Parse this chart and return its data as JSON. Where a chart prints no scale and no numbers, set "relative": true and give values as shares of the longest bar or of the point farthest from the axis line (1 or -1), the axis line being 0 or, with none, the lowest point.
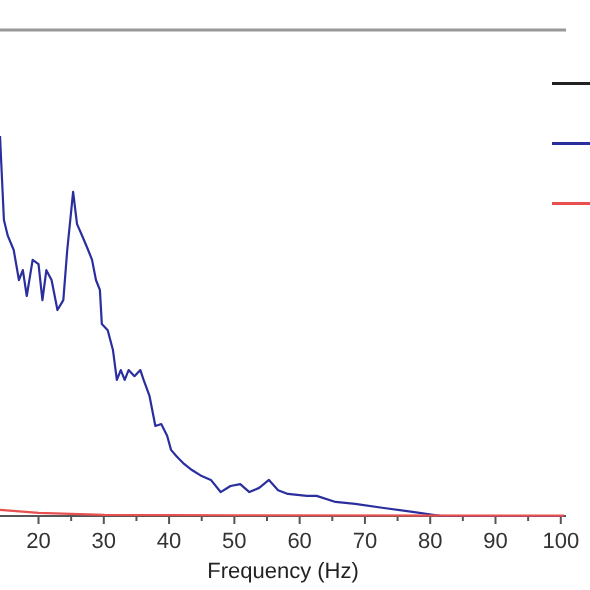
{
  "chart_data": {
    "type": "line",
    "xlabel": "Frequency (Hz)",
    "relative": true,
    "tick_labels": "x",
    "xlim": [
      14.1,
      100.8
    ],
    "xticks": [
      20,
      30,
      40,
      50,
      60,
      70,
      80,
      90,
      100
    ],
    "series": [
      {
        "color": "#2b2f9e",
        "x": [
          14.1,
          14.7,
          15.3,
          16.2,
          17.0,
          17.6,
          18.2,
          19.1,
          20.0,
          20.6,
          21.2,
          22.0,
          22.9,
          23.8,
          24.4,
          25.3,
          25.9,
          26.7,
          27.6,
          28.2,
          28.8,
          29.4,
          29.7,
          30.6,
          31.4,
          32.0,
          32.6,
          33.2,
          33.8,
          34.7,
          35.6,
          36.1,
          37.0,
          37.9,
          38.8,
          39.7,
          40.3,
          41.1,
          42.3,
          43.5,
          45.0,
          46.4,
          47.9,
          49.4,
          50.9,
          52.3,
          53.8,
          55.3,
          56.7,
          58.2,
          61.1,
          62.6,
          65.5,
          68.5,
          72.9,
          77.3,
          81.7,
          90.5,
          100.5
        ],
        "values": [
          1.0,
          0.779,
          0.737,
          0.7,
          0.621,
          0.647,
          0.579,
          0.674,
          0.663,
          0.568,
          0.647,
          0.621,
          0.542,
          0.568,
          0.7,
          0.853,
          0.768,
          0.737,
          0.7,
          0.674,
          0.621,
          0.595,
          0.505,
          0.489,
          0.437,
          0.358,
          0.384,
          0.358,
          0.384,
          0.368,
          0.384,
          0.358,
          0.316,
          0.237,
          0.242,
          0.211,
          0.174,
          0.158,
          0.137,
          0.121,
          0.105,
          0.095,
          0.063,
          0.079,
          0.084,
          0.063,
          0.074,
          0.095,
          0.068,
          0.058,
          0.053,
          0.053,
          0.037,
          0.032,
          0.021,
          0.011,
          0,
          0,
          0
        ]
      },
      {
        "color": "#e8504f",
        "x": [
          14.1,
          20,
          30,
          50,
          100.5
        ],
        "values": [
          0.016,
          0.008,
          0.003,
          0.002,
          0.001
        ]
      }
    ]
  }
}
